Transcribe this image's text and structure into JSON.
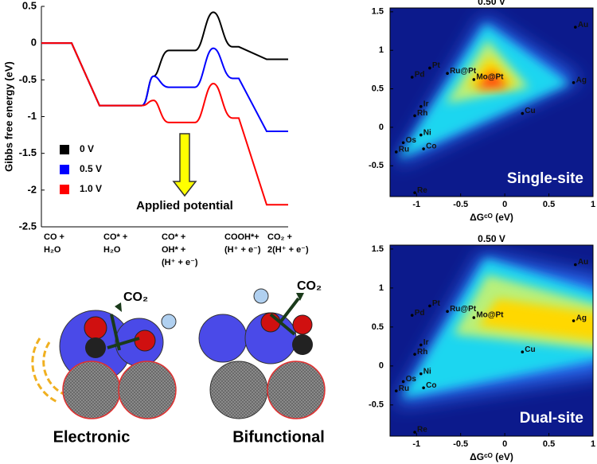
{
  "chart_data": [
    {
      "type": "energy_diagram",
      "y_label": "Gibbs free energy (eV)",
      "categories": [
        [
          "CO +",
          "H₂O"
        ],
        [
          "CO* +",
          "H₂O"
        ],
        [
          "CO* +",
          "OH* +",
          "(H⁺ + e⁻)"
        ],
        [
          "COOH*+",
          "(H⁺ + e⁻)"
        ],
        [
          "CO₂ +",
          "2(H⁺ + e⁻)"
        ]
      ],
      "ylim": [
        -2.5,
        0.5
      ],
      "yticks": [
        -2.5,
        -2,
        -1.5,
        -1,
        -0.5,
        0,
        0.5
      ],
      "series": [
        {
          "name": "0 V",
          "color": "#000000",
          "levels": [
            0,
            -0.85,
            -0.1,
            -0.05,
            -0.22
          ],
          "barriers": [
            -0.45,
            0.42
          ]
        },
        {
          "name": "0.5 V",
          "color": "#0000ff",
          "levels": [
            0,
            -0.85,
            -0.6,
            -0.48,
            -1.2
          ],
          "barriers": [
            -0.45,
            -0.07
          ]
        },
        {
          "name": "1.0 V",
          "color": "#ff0000",
          "levels": [
            0,
            -0.85,
            -1.08,
            -1.02,
            -2.2
          ],
          "barriers": [
            -0.78,
            -0.55
          ]
        }
      ],
      "annotation": "Applied potential"
    },
    {
      "type": "volcano",
      "title": "0.50 V",
      "panel_label": "Single-site",
      "x_label": "ΔGᶜᴼ (eV)",
      "xlim": [
        -1.3,
        1.0
      ],
      "ylim": [
        -0.9,
        1.55
      ],
      "xticks": [
        -1,
        -0.5,
        0,
        0.5,
        1
      ],
      "yticks": [
        -0.5,
        0,
        0.5,
        1,
        1.5
      ],
      "labels": [
        "Au",
        "Pd",
        "Pt",
        "Ru@Pt",
        "Mo@Pt",
        "Ag",
        "Ir",
        "Rh",
        "Cu",
        "Ni",
        "Os",
        "Co",
        "Ru",
        "Re"
      ],
      "x": [
        0.8,
        -1.05,
        -0.85,
        -0.65,
        -0.35,
        0.78,
        -0.95,
        -1.02,
        0.2,
        -0.95,
        -1.15,
        -0.92,
        -1.23,
        -1.02
      ],
      "y": [
        1.3,
        0.65,
        0.77,
        0.7,
        0.62,
        0.58,
        0.27,
        0.15,
        0.18,
        -0.1,
        -0.2,
        -0.28,
        -0.32,
        -0.85
      ]
    },
    {
      "type": "volcano",
      "title": "0.50 V",
      "panel_label": "Dual-site",
      "x_label": "ΔGᶜᴼ (eV)",
      "xlim": [
        -1.3,
        1.0
      ],
      "ylim": [
        -0.9,
        1.55
      ],
      "xticks": [
        -1,
        -0.5,
        0,
        0.5,
        1
      ],
      "yticks": [
        -0.5,
        0,
        0.5,
        1,
        1.5
      ],
      "labels": [
        "Au",
        "Pd",
        "Pt",
        "Ru@Pt",
        "Mo@Pt",
        "Ag",
        "Ir",
        "Rh",
        "Cu",
        "Ni",
        "Os",
        "Co",
        "Ru",
        "Re"
      ],
      "x": [
        0.8,
        -1.05,
        -0.85,
        -0.65,
        -0.35,
        0.78,
        -0.95,
        -1.02,
        0.2,
        -0.95,
        -1.15,
        -0.92,
        -1.23,
        -1.02
      ],
      "y": [
        1.3,
        0.65,
        0.77,
        0.7,
        0.62,
        0.58,
        0.27,
        0.15,
        0.18,
        -0.1,
        -0.2,
        -0.28,
        -0.32,
        -0.85
      ]
    }
  ],
  "schematic": {
    "product": "CO₂",
    "left_label": "Electronic",
    "right_label": "Bifunctional"
  }
}
